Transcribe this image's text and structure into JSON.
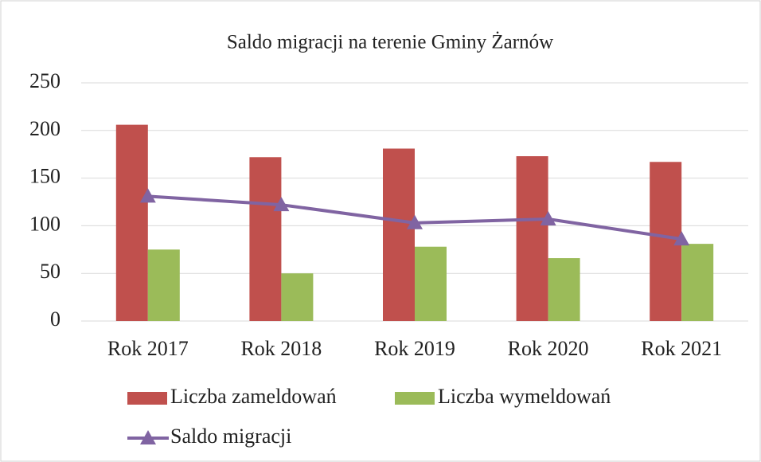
{
  "chart_data": {
    "type": "bar",
    "title": "Saldo migracji na terenie Gminy Żarnów",
    "categories": [
      "Rok 2017",
      "Rok 2018",
      "Rok 2019",
      "Rok 2020",
      "Rok 2021"
    ],
    "series": [
      {
        "name": "Liczba zameldowań",
        "type": "bar",
        "color": "#c0504d",
        "values": [
          206,
          172,
          181,
          173,
          167
        ]
      },
      {
        "name": "Liczba wymeldowań",
        "type": "bar",
        "color": "#9bbb59",
        "values": [
          75,
          50,
          78,
          66,
          81
        ]
      },
      {
        "name": "Saldo migracji",
        "type": "line",
        "color": "#8064a2",
        "values": [
          131,
          122,
          103,
          107,
          86
        ]
      }
    ],
    "ylim": [
      0,
      250
    ],
    "yticks": [
      0,
      50,
      100,
      150,
      200,
      250
    ],
    "grid": true
  }
}
